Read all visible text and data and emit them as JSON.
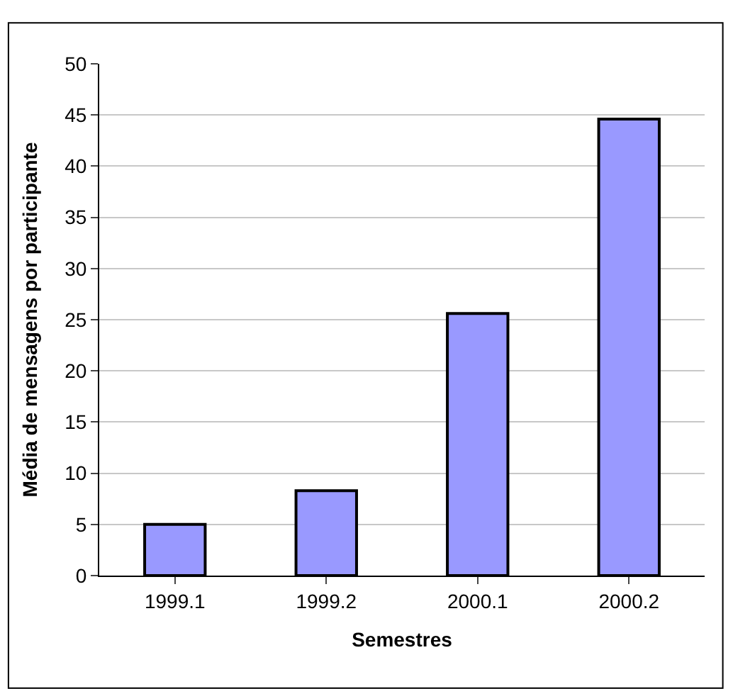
{
  "chart_data": {
    "type": "bar",
    "xlabel": "Semestres",
    "ylabel": "Média de mensagens por participante",
    "categories": [
      "1999.1",
      "1999.2",
      "2000.1",
      "2000.2"
    ],
    "values": [
      5.0,
      8.3,
      25.6,
      44.6
    ],
    "color": "#9999ff",
    "ylim": [
      0,
      50
    ],
    "yticks": [
      0,
      5,
      10,
      15,
      20,
      25,
      30,
      35,
      40,
      45,
      50
    ],
    "grid": "y"
  }
}
